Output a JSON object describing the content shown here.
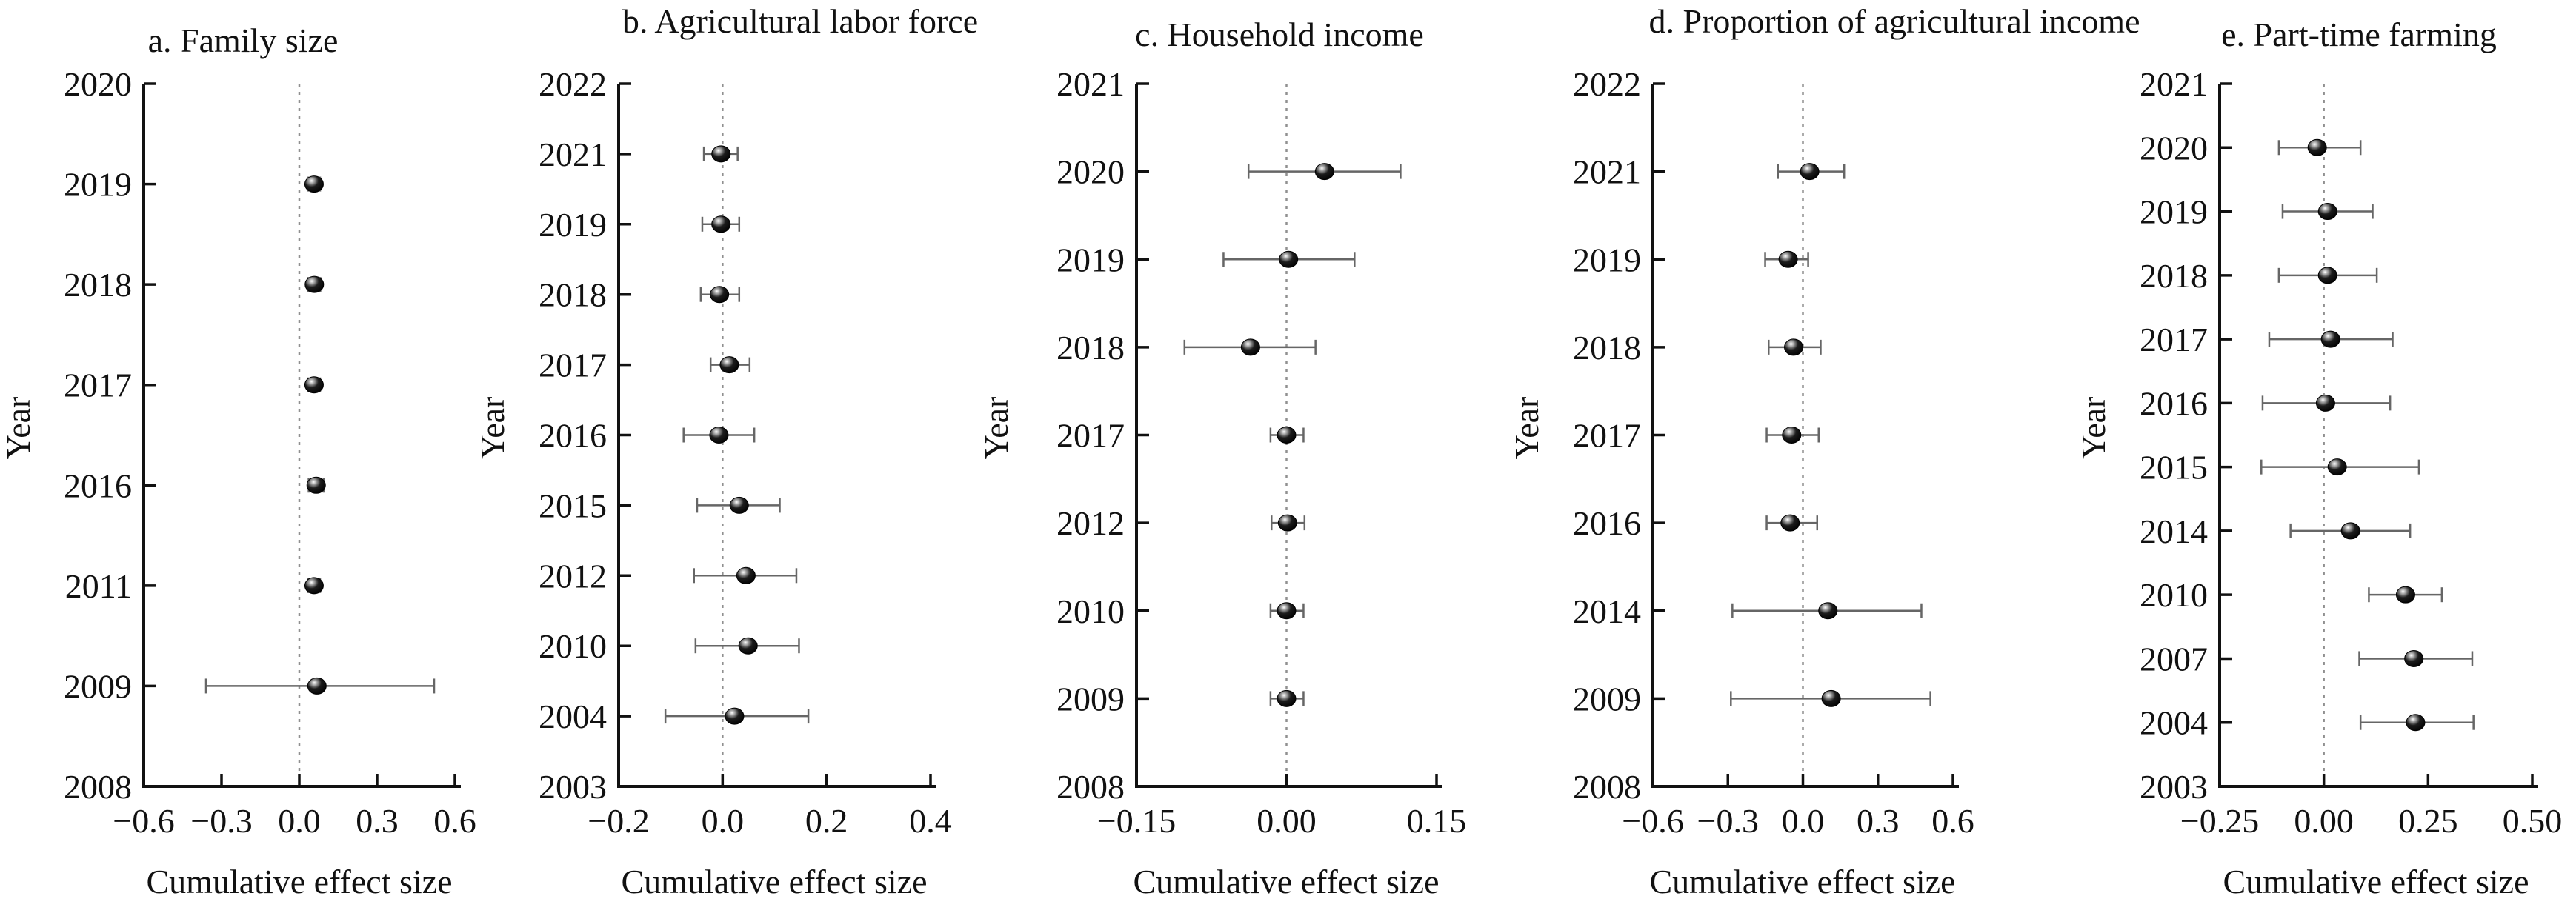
{
  "figure": {
    "background": "#ffffff",
    "axis_color": "#111111",
    "errorbar_color": "#666666",
    "zero_line_color": "#909090",
    "marker_color": "#000000",
    "marker_highlight": "#ffffff",
    "xlabel": "Cumulative effect size",
    "ylabel": "Year"
  },
  "chart_data": [
    {
      "type": "scatter",
      "subtype": "horizontal-error-bar-forest",
      "title": "a. Family size",
      "xlabel": "Cumulative effect size",
      "ylabel": "Year",
      "xlim": [
        -0.6,
        0.6
      ],
      "grid": false,
      "zero_reference_line": true,
      "xticks": [
        {
          "value": -0.6,
          "label": "−0.6"
        },
        {
          "value": -0.3,
          "label": "−0.3"
        },
        {
          "value": 0.0,
          "label": "0.0"
        },
        {
          "value": 0.3,
          "label": "0.3"
        },
        {
          "value": 0.6,
          "label": "0.6"
        }
      ],
      "yticks": [
        "2020",
        "2019",
        "2018",
        "2017",
        "2016",
        "2011",
        "2009",
        "2008"
      ],
      "points": [
        {
          "year": "2019",
          "x": 0.057,
          "lo": 0.034,
          "hi": 0.08
        },
        {
          "year": "2018",
          "x": 0.058,
          "lo": 0.035,
          "hi": 0.081
        },
        {
          "year": "2017",
          "x": 0.057,
          "lo": 0.034,
          "hi": 0.08
        },
        {
          "year": "2016",
          "x": 0.065,
          "lo": 0.036,
          "hi": 0.094
        },
        {
          "year": "2011",
          "x": 0.057,
          "lo": 0.034,
          "hi": 0.08
        },
        {
          "year": "2009",
          "x": 0.068,
          "lo": -0.36,
          "hi": 0.52
        }
      ]
    },
    {
      "type": "scatter",
      "subtype": "horizontal-error-bar-forest",
      "title": "b. Agricultural labor force",
      "xlabel": "Cumulative effect size",
      "ylabel": "Year",
      "xlim": [
        -0.2,
        0.4
      ],
      "grid": false,
      "zero_reference_line": true,
      "xticks": [
        {
          "value": -0.2,
          "label": "−0.2"
        },
        {
          "value": 0.0,
          "label": "0.0"
        },
        {
          "value": 0.2,
          "label": "0.2"
        },
        {
          "value": 0.4,
          "label": "0.4"
        }
      ],
      "yticks": [
        "2022",
        "2021",
        "2019",
        "2018",
        "2017",
        "2016",
        "2015",
        "2012",
        "2010",
        "2004",
        "2003"
      ],
      "points": [
        {
          "year": "2021",
          "x": -0.003,
          "lo": -0.036,
          "hi": 0.029
        },
        {
          "year": "2019",
          "x": -0.003,
          "lo": -0.039,
          "hi": 0.032
        },
        {
          "year": "2018",
          "x": -0.006,
          "lo": -0.042,
          "hi": 0.032
        },
        {
          "year": "2017",
          "x": 0.013,
          "lo": -0.023,
          "hi": 0.052
        },
        {
          "year": "2016",
          "x": -0.007,
          "lo": -0.075,
          "hi": 0.061
        },
        {
          "year": "2015",
          "x": 0.032,
          "lo": -0.049,
          "hi": 0.11
        },
        {
          "year": "2012",
          "x": 0.045,
          "lo": -0.055,
          "hi": 0.142
        },
        {
          "year": "2010",
          "x": 0.049,
          "lo": -0.052,
          "hi": 0.147
        },
        {
          "year": "2004",
          "x": 0.023,
          "lo": -0.11,
          "hi": 0.165
        }
      ]
    },
    {
      "type": "scatter",
      "subtype": "horizontal-error-bar-forest",
      "title": "c. Household income",
      "xlabel": "Cumulative effect size",
      "ylabel": "Year",
      "xlim": [
        -0.15,
        0.15
      ],
      "grid": false,
      "zero_reference_line": true,
      "xticks": [
        {
          "value": -0.15,
          "label": "−0.15"
        },
        {
          "value": 0.0,
          "label": "0.00"
        },
        {
          "value": 0.15,
          "label": "0.15"
        }
      ],
      "yticks": [
        "2021",
        "2020",
        "2019",
        "2018",
        "2017",
        "2012",
        "2010",
        "2009",
        "2008"
      ],
      "points": [
        {
          "year": "2020",
          "x": 0.038,
          "lo": -0.038,
          "hi": 0.114
        },
        {
          "year": "2019",
          "x": 0.002,
          "lo": -0.063,
          "hi": 0.068
        },
        {
          "year": "2018",
          "x": -0.036,
          "lo": -0.102,
          "hi": 0.029
        },
        {
          "year": "2017",
          "x": 0.0,
          "lo": -0.016,
          "hi": 0.017
        },
        {
          "year": "2012",
          "x": 0.001,
          "lo": -0.015,
          "hi": 0.018
        },
        {
          "year": "2010",
          "x": 0.0,
          "lo": -0.016,
          "hi": 0.017
        },
        {
          "year": "2009",
          "x": 0.0,
          "lo": -0.016,
          "hi": 0.017
        }
      ]
    },
    {
      "type": "scatter",
      "subtype": "horizontal-error-bar-forest",
      "title": "d. Proportion of agricultural income",
      "xlabel": "Cumulative effect size",
      "ylabel": "Year",
      "xlim": [
        -0.6,
        0.6
      ],
      "grid": false,
      "zero_reference_line": true,
      "xticks": [
        {
          "value": -0.6,
          "label": "−0.6"
        },
        {
          "value": -0.3,
          "label": "−0.3"
        },
        {
          "value": 0.0,
          "label": "0.0"
        },
        {
          "value": 0.3,
          "label": "0.3"
        },
        {
          "value": 0.6,
          "label": "0.6"
        }
      ],
      "yticks": [
        "2022",
        "2021",
        "2019",
        "2018",
        "2017",
        "2016",
        "2014",
        "2009",
        "2008"
      ],
      "points": [
        {
          "year": "2021",
          "x": 0.027,
          "lo": -0.1,
          "hi": 0.165
        },
        {
          "year": "2019",
          "x": -0.059,
          "lo": -0.151,
          "hi": 0.021
        },
        {
          "year": "2018",
          "x": -0.037,
          "lo": -0.137,
          "hi": 0.071
        },
        {
          "year": "2017",
          "x": -0.045,
          "lo": -0.145,
          "hi": 0.063
        },
        {
          "year": "2016",
          "x": -0.051,
          "lo": -0.145,
          "hi": 0.057
        },
        {
          "year": "2014",
          "x": 0.1,
          "lo": -0.282,
          "hi": 0.474
        },
        {
          "year": "2009",
          "x": 0.113,
          "lo": -0.288,
          "hi": 0.51
        }
      ]
    },
    {
      "type": "scatter",
      "subtype": "horizontal-error-bar-forest",
      "title": "e. Part-time farming",
      "xlabel": "Cumulative effect size",
      "ylabel": "Year",
      "xlim": [
        -0.25,
        0.5
      ],
      "grid": false,
      "zero_reference_line": true,
      "xticks": [
        {
          "value": -0.25,
          "label": "−0.25"
        },
        {
          "value": 0.0,
          "label": "0.00"
        },
        {
          "value": 0.25,
          "label": "0.25"
        },
        {
          "value": 0.5,
          "label": "0.50"
        }
      ],
      "yticks": [
        "2021",
        "2020",
        "2019",
        "2018",
        "2017",
        "2016",
        "2015",
        "2014",
        "2010",
        "2007",
        "2004",
        "2003"
      ],
      "points": [
        {
          "year": "2020",
          "x": -0.016,
          "lo": -0.108,
          "hi": 0.088
        },
        {
          "year": "2019",
          "x": 0.009,
          "lo": -0.099,
          "hi": 0.117
        },
        {
          "year": "2018",
          "x": 0.009,
          "lo": -0.108,
          "hi": 0.127
        },
        {
          "year": "2017",
          "x": 0.016,
          "lo": -0.131,
          "hi": 0.165
        },
        {
          "year": "2016",
          "x": 0.004,
          "lo": -0.147,
          "hi": 0.159
        },
        {
          "year": "2015",
          "x": 0.032,
          "lo": -0.15,
          "hi": 0.228
        },
        {
          "year": "2014",
          "x": 0.064,
          "lo": -0.08,
          "hi": 0.207
        },
        {
          "year": "2010",
          "x": 0.196,
          "lo": 0.108,
          "hi": 0.283
        },
        {
          "year": "2007",
          "x": 0.216,
          "lo": 0.085,
          "hi": 0.356
        },
        {
          "year": "2004",
          "x": 0.22,
          "lo": 0.088,
          "hi": 0.359
        }
      ]
    }
  ]
}
